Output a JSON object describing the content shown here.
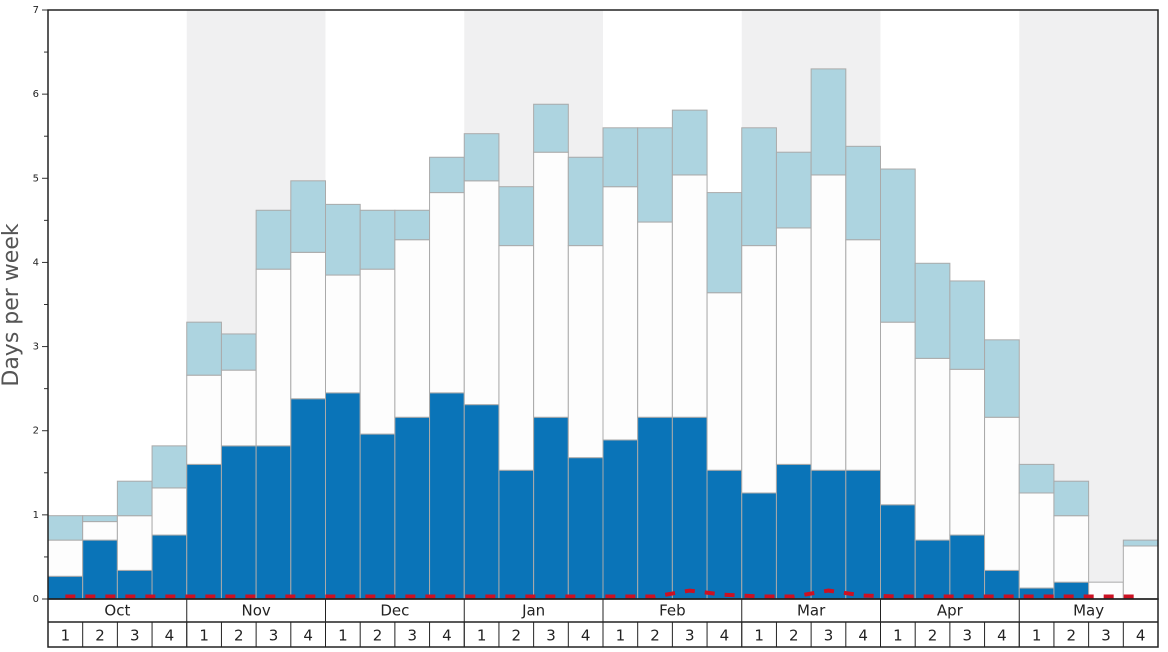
{
  "chart_data": {
    "type": "stacked-bar",
    "y_label": "Days per week",
    "categories": [
      "1",
      "2",
      "3",
      "4",
      "1",
      "2",
      "3",
      "4",
      "1",
      "2",
      "3",
      "4",
      "1",
      "2",
      "3",
      "4",
      "1",
      "2",
      "3",
      "4",
      "1",
      "2",
      "3",
      "4",
      "1",
      "2",
      "3",
      "4",
      "1",
      "2",
      "3",
      "4"
    ],
    "groups": [
      "Oct",
      "Nov",
      "Dec",
      "Jan",
      "Feb",
      "Mar",
      "Apr",
      "May"
    ],
    "group_size": 4,
    "band_color": "#f0f0f1",
    "ylim": [
      0,
      7
    ],
    "yticks": [
      0,
      1,
      2,
      3,
      4,
      5,
      6,
      7
    ],
    "minor_yticks": [
      0.5,
      1.5,
      2.5,
      3.5,
      4.5,
      5.5,
      6.5
    ],
    "series": [
      {
        "color": "#0a74b8",
        "values": [
          0.27,
          0.7,
          0.34,
          0.76,
          1.6,
          1.82,
          1.82,
          2.38,
          2.45,
          1.96,
          2.16,
          2.45,
          2.31,
          1.53,
          2.16,
          1.68,
          1.89,
          2.16,
          2.16,
          1.53,
          1.26,
          1.6,
          1.53,
          1.53,
          1.12,
          0.7,
          0.76,
          0.34,
          0.13,
          0.2,
          0,
          0
        ]
      },
      {
        "color": "#fdfdfd",
        "values": [
          0.43,
          0.22,
          0.65,
          0.56,
          1.06,
          0.9,
          2.1,
          1.74,
          1.4,
          1.96,
          2.11,
          2.38,
          2.66,
          2.67,
          3.15,
          2.52,
          3.01,
          2.32,
          2.88,
          2.11,
          2.94,
          2.81,
          3.51,
          2.74,
          2.17,
          2.16,
          1.97,
          1.82,
          1.13,
          0.79,
          0.2,
          0.63
        ]
      },
      {
        "color": "#add4e0",
        "values": [
          0.29,
          0.07,
          0.41,
          0.5,
          0.63,
          0.43,
          0.7,
          0.85,
          0.84,
          0.7,
          0.35,
          0.42,
          0.56,
          0.7,
          0.57,
          1.05,
          0.7,
          1.12,
          0.77,
          1.19,
          1.4,
          0.9,
          1.26,
          1.11,
          1.82,
          1.13,
          1.05,
          0.92,
          0.34,
          0.41,
          0,
          0.07
        ]
      }
    ],
    "line": {
      "color": "#cc1122",
      "values": [
        0.03,
        0.03,
        0.03,
        0.03,
        0.03,
        0.03,
        0.03,
        0.03,
        0.03,
        0.03,
        0.03,
        0.03,
        0.03,
        0.03,
        0.03,
        0.03,
        0.03,
        0.03,
        0.1,
        0.05,
        0.03,
        0.03,
        0.1,
        0.04,
        0.03,
        0.03,
        0.03,
        0.03,
        0.03,
        0.03,
        0.03,
        0.03
      ]
    }
  }
}
